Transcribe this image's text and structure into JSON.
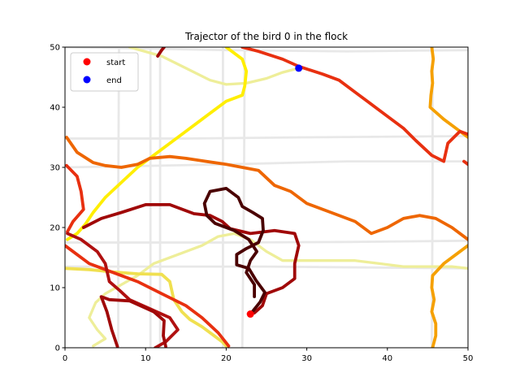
{
  "chart_data": {
    "type": "scatter",
    "title": "Trajector of the bird 0 in the flock",
    "xlim": [
      0,
      50
    ],
    "ylim": [
      0,
      50
    ],
    "x_ticks": [
      0,
      10,
      20,
      30,
      40,
      50
    ],
    "y_ticks": [
      0,
      10,
      20,
      30,
      40,
      50
    ],
    "x_tick_labels": [
      "0",
      "10",
      "20",
      "30",
      "40",
      "50"
    ],
    "y_tick_labels": [
      "0",
      "10",
      "20",
      "30",
      "40",
      "50"
    ],
    "legend_position": "top-left",
    "legend": [
      {
        "label": "start",
        "color": "#ff0000"
      },
      {
        "label": "end",
        "color": "#0000ff"
      }
    ],
    "markers": {
      "start": {
        "x": 23.0,
        "y": 5.6,
        "color": "#ff0000"
      },
      "end": {
        "x": 29.0,
        "y": 46.5,
        "color": "#0000ff"
      }
    },
    "lines": [
      {
        "color": "#e8e8e8",
        "width": 1.5,
        "points": [
          [
            0,
            34.8
          ],
          [
            15,
            34.8
          ],
          [
            30,
            35
          ],
          [
            50,
            35.2
          ]
        ]
      },
      {
        "color": "#e8e8e8",
        "width": 1.5,
        "points": [
          [
            0,
            30
          ],
          [
            20,
            30.5
          ],
          [
            35,
            31
          ],
          [
            50,
            31
          ]
        ]
      },
      {
        "color": "#e8e8e8",
        "width": 1.5,
        "points": [
          [
            0,
            17.5
          ],
          [
            20,
            17.5
          ],
          [
            35,
            17.6
          ],
          [
            50,
            17.8
          ]
        ]
      },
      {
        "color": "#e8e8e8",
        "width": 1.5,
        "points": [
          [
            0,
            13.5
          ],
          [
            25,
            13.5
          ],
          [
            50,
            13.2
          ]
        ]
      },
      {
        "color": "#e8e8e8",
        "width": 1.5,
        "points": [
          [
            0,
            50
          ],
          [
            20,
            49.5
          ],
          [
            35,
            49.3
          ],
          [
            50,
            49.5
          ]
        ]
      },
      {
        "color": "#e8e8e8",
        "width": 1.5,
        "points": [
          [
            6.6,
            0
          ],
          [
            6.6,
            25
          ],
          [
            6.7,
            50
          ]
        ]
      },
      {
        "color": "#e8e8e8",
        "width": 1.5,
        "points": [
          [
            10.6,
            0
          ],
          [
            10.6,
            25
          ],
          [
            10.6,
            50
          ]
        ]
      },
      {
        "color": "#e8e8e8",
        "width": 1.5,
        "points": [
          [
            11.8,
            0
          ],
          [
            11.8,
            25
          ],
          [
            11.8,
            50
          ]
        ]
      },
      {
        "color": "#e8e8e8",
        "width": 1.5,
        "points": [
          [
            19.6,
            0
          ],
          [
            19.6,
            25
          ],
          [
            19.6,
            50
          ]
        ]
      },
      {
        "color": "#e8e8e8",
        "width": 1.5,
        "points": [
          [
            22,
            0
          ],
          [
            22.2,
            25
          ],
          [
            22.3,
            50
          ]
        ]
      },
      {
        "color": "#e8e8e8",
        "width": 1.5,
        "points": [
          [
            45.5,
            0
          ],
          [
            45.6,
            25
          ],
          [
            45.6,
            50
          ]
        ]
      },
      {
        "color": "#eeee99",
        "width": 2,
        "points": [
          [
            3.5,
            0.3
          ],
          [
            5,
            1.5
          ],
          [
            4,
            3
          ],
          [
            3,
            5
          ],
          [
            3.8,
            7.5
          ],
          [
            5,
            9
          ],
          [
            7,
            10.5
          ],
          [
            9,
            12
          ],
          [
            11,
            14
          ],
          [
            14,
            15.5
          ],
          [
            17,
            17
          ],
          [
            19,
            18.5
          ],
          [
            21,
            19
          ],
          [
            23,
            18
          ],
          [
            25,
            16
          ],
          [
            27,
            14.5
          ],
          [
            30,
            14.5
          ],
          [
            33,
            14.5
          ],
          [
            36,
            14.5
          ],
          [
            39,
            14
          ],
          [
            42,
            13.5
          ],
          [
            45,
            13.5
          ],
          [
            48,
            13.5
          ],
          [
            50,
            13.2
          ]
        ]
      },
      {
        "color": "#eeee99",
        "width": 2,
        "points": [
          [
            8,
            50
          ],
          [
            12,
            48.5
          ],
          [
            15,
            46.5
          ],
          [
            18,
            44.5
          ],
          [
            20,
            43.8
          ],
          [
            22.5,
            44
          ],
          [
            25,
            44.8
          ],
          [
            27,
            45.8
          ],
          [
            29,
            46.5
          ]
        ]
      },
      {
        "color": "#ffee00",
        "width": 2.5,
        "points": [
          [
            20,
            50
          ],
          [
            22,
            48
          ],
          [
            22.5,
            46
          ],
          [
            22.3,
            43.5
          ],
          [
            22,
            42
          ],
          [
            20,
            41
          ],
          [
            18.5,
            39.5
          ],
          [
            17,
            38
          ],
          [
            15,
            36
          ],
          [
            13,
            34
          ],
          [
            11,
            32
          ],
          [
            9,
            30
          ],
          [
            7,
            27.5
          ],
          [
            5,
            25
          ],
          [
            3.5,
            22.5
          ],
          [
            2.5,
            20.5
          ],
          [
            1.5,
            19
          ],
          [
            0.3,
            18
          ]
        ]
      },
      {
        "color": "#f0e050",
        "width": 2.5,
        "points": [
          [
            0,
            13.2
          ],
          [
            3,
            13
          ],
          [
            6,
            12.6
          ],
          [
            9,
            12.3
          ],
          [
            12,
            12.2
          ],
          [
            13,
            11
          ],
          [
            13.5,
            8
          ],
          [
            14.5,
            6
          ],
          [
            15.5,
            4.7
          ],
          [
            17,
            3.5
          ],
          [
            18.5,
            2
          ],
          [
            19.5,
            1
          ],
          [
            20.2,
            0
          ]
        ]
      },
      {
        "color": "#f5a000",
        "width": 2.5,
        "points": [
          [
            45.6,
            0
          ],
          [
            46,
            2
          ],
          [
            46,
            4
          ],
          [
            45.5,
            6
          ],
          [
            45.8,
            8
          ],
          [
            45.5,
            10
          ],
          [
            45.6,
            12
          ],
          [
            47,
            14
          ],
          [
            48.5,
            15.5
          ],
          [
            50,
            17
          ]
        ]
      },
      {
        "color": "#f5a000",
        "width": 2.5,
        "points": [
          [
            45.5,
            50
          ],
          [
            45.7,
            48
          ],
          [
            45.5,
            46
          ],
          [
            45.6,
            44
          ],
          [
            45.4,
            42
          ],
          [
            45.3,
            40
          ],
          [
            47,
            38
          ],
          [
            48.5,
            36.5
          ],
          [
            50,
            35
          ]
        ]
      },
      {
        "color": "#ee6600",
        "width": 2.5,
        "points": [
          [
            0.2,
            35
          ],
          [
            1.5,
            32.5
          ],
          [
            3.5,
            30.8
          ],
          [
            5,
            30.3
          ],
          [
            7,
            30
          ],
          [
            9,
            30.5
          ],
          [
            10.5,
            31.5
          ],
          [
            13,
            31.8
          ],
          [
            15,
            31.5
          ],
          [
            17.5,
            31
          ],
          [
            20,
            30.5
          ],
          [
            22,
            30
          ],
          [
            24,
            29.5
          ],
          [
            26,
            27
          ],
          [
            28,
            26
          ],
          [
            30,
            24
          ],
          [
            33,
            22.5
          ],
          [
            36,
            21
          ],
          [
            38,
            19
          ],
          [
            40,
            20
          ],
          [
            42,
            21.5
          ],
          [
            44,
            22
          ],
          [
            46,
            21.5
          ],
          [
            48,
            20
          ],
          [
            50,
            18
          ]
        ]
      },
      {
        "color": "#e83010",
        "width": 2.5,
        "points": [
          [
            22,
            50
          ],
          [
            24,
            49.3
          ],
          [
            27,
            48
          ],
          [
            29,
            46.8
          ],
          [
            32,
            45.5
          ],
          [
            34,
            44.5
          ],
          [
            36,
            42.5
          ],
          [
            38,
            40.5
          ],
          [
            40,
            38.5
          ],
          [
            42,
            36.5
          ],
          [
            43.5,
            34.5
          ],
          [
            45.5,
            32
          ],
          [
            47,
            31
          ],
          [
            47.5,
            34
          ],
          [
            49,
            36
          ],
          [
            50,
            35.5
          ]
        ]
      },
      {
        "color": "#e83010",
        "width": 2.5,
        "points": [
          [
            49.5,
            31
          ],
          [
            50,
            30.5
          ]
        ]
      },
      {
        "color": "#e83010",
        "width": 2.5,
        "points": [
          [
            0,
            17
          ],
          [
            1.5,
            15.5
          ],
          [
            3,
            14
          ],
          [
            5,
            13
          ],
          [
            7,
            12
          ],
          [
            9,
            11
          ],
          [
            12,
            9
          ],
          [
            15,
            7
          ],
          [
            17,
            5
          ],
          [
            19,
            2.5
          ],
          [
            20.3,
            0.3
          ]
        ]
      },
      {
        "color": "#e83010",
        "width": 2.5,
        "points": [
          [
            0.2,
            30.3
          ],
          [
            1.5,
            28.5
          ],
          [
            2,
            26
          ],
          [
            2.3,
            23
          ],
          [
            1,
            21
          ],
          [
            0.3,
            19.3
          ]
        ]
      },
      {
        "color": "#b01010",
        "width": 2.5,
        "points": [
          [
            0.3,
            19
          ],
          [
            2,
            18
          ],
          [
            4,
            16
          ],
          [
            5,
            14
          ],
          [
            5.5,
            11
          ],
          [
            6.8,
            9.5
          ],
          [
            8,
            8
          ],
          [
            10.5,
            6.5
          ],
          [
            13,
            5
          ],
          [
            14,
            3
          ],
          [
            12.5,
            1
          ],
          [
            11.2,
            0
          ]
        ]
      },
      {
        "color": "#a00808",
        "width": 2.5,
        "points": [
          [
            2.3,
            20
          ],
          [
            4.5,
            21.5
          ],
          [
            7,
            22.5
          ],
          [
            10,
            23.8
          ],
          [
            13,
            23.8
          ],
          [
            16,
            22.3
          ],
          [
            18,
            22
          ],
          [
            19.5,
            21
          ],
          [
            20.5,
            19.8
          ],
          [
            23,
            19
          ],
          [
            26,
            19.5
          ],
          [
            28.5,
            19
          ],
          [
            29,
            17
          ],
          [
            28.5,
            14
          ],
          [
            28.5,
            11.5
          ],
          [
            27,
            10
          ],
          [
            25,
            9
          ],
          [
            24.5,
            7
          ],
          [
            23.5,
            5.8
          ]
        ]
      },
      {
        "color": "#a00808",
        "width": 2.5,
        "points": [
          [
            11.5,
            48.5
          ],
          [
            12,
            49.5
          ],
          [
            12.3,
            50
          ]
        ]
      },
      {
        "color": "#a00808",
        "width": 2.5,
        "points": [
          [
            6.5,
            0.2
          ],
          [
            5.8,
            3
          ],
          [
            5.2,
            6
          ],
          [
            4.5,
            8.5
          ],
          [
            5.5,
            8
          ],
          [
            8,
            7.8
          ],
          [
            11,
            6
          ],
          [
            12.3,
            4.5
          ],
          [
            12.2,
            2
          ],
          [
            12.5,
            0.2
          ]
        ]
      },
      {
        "color": "#4a0000",
        "width": 2.5,
        "points": [
          [
            23,
            5.6
          ],
          [
            24.2,
            7.6
          ],
          [
            24.8,
            9.2
          ],
          [
            23.7,
            11.2
          ],
          [
            22.8,
            13.2
          ],
          [
            21.3,
            13.8
          ],
          [
            21.3,
            15.5
          ],
          [
            22.5,
            16.5
          ],
          [
            24,
            17.5
          ],
          [
            24.6,
            19.5
          ],
          [
            24.5,
            21.5
          ],
          [
            23.3,
            22.5
          ],
          [
            22,
            23.5
          ],
          [
            21.5,
            25
          ],
          [
            20,
            26.5
          ],
          [
            18,
            26
          ],
          [
            17.3,
            24
          ],
          [
            17.6,
            22
          ],
          [
            18.6,
            20.7
          ],
          [
            21,
            19.5
          ],
          [
            22.8,
            18
          ],
          [
            23.8,
            16
          ],
          [
            23,
            14.5
          ],
          [
            22.5,
            12.5
          ],
          [
            23.5,
            10.5
          ],
          [
            23.5,
            8.5
          ]
        ]
      }
    ]
  }
}
